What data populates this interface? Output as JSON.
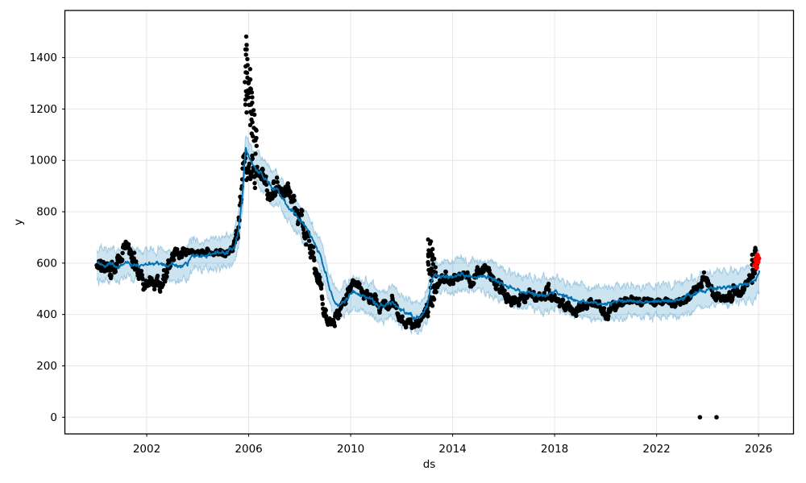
{
  "chart_data": {
    "type": "scatter-line-forecast",
    "title": "",
    "xlabel": "ds",
    "ylabel": "y",
    "legend": "none",
    "grid": true,
    "x_ticks": [
      2002,
      2006,
      2010,
      2014,
      2018,
      2022,
      2026
    ],
    "y_ticks": [
      0,
      200,
      400,
      600,
      800,
      1000,
      1200,
      1400
    ],
    "x_range": [
      1998.79,
      2027.37
    ],
    "y_range": [
      -64.9,
      1583.7
    ],
    "colors": {
      "observed": "#000000",
      "trend_line": "#0072B2",
      "band_fill": "rgba(0,114,178,0.2)",
      "band_edge": "rgba(0,114,178,0.28)",
      "future_points": "#ff0000",
      "grid": "#e6e6e6",
      "spine": "#000000"
    },
    "trend": [
      [
        2000.04,
        600
      ],
      [
        2000.3,
        592
      ],
      [
        2000.6,
        596
      ],
      [
        2000.9,
        588
      ],
      [
        2001.2,
        604
      ],
      [
        2001.5,
        592
      ],
      [
        2001.8,
        588
      ],
      [
        2002.1,
        596
      ],
      [
        2002.4,
        600
      ],
      [
        2002.7,
        590
      ],
      [
        2003.0,
        594
      ],
      [
        2003.3,
        590
      ],
      [
        2003.6,
        598
      ],
      [
        2003.78,
        632
      ],
      [
        2004.0,
        628
      ],
      [
        2004.3,
        632
      ],
      [
        2004.6,
        636
      ],
      [
        2004.9,
        640
      ],
      [
        2005.2,
        644
      ],
      [
        2005.45,
        662
      ],
      [
        2005.6,
        732
      ],
      [
        2005.75,
        862
      ],
      [
        2005.88,
        1040
      ],
      [
        2006.0,
        1012
      ],
      [
        2006.15,
        986
      ],
      [
        2006.4,
        956
      ],
      [
        2006.7,
        926
      ],
      [
        2006.95,
        882
      ],
      [
        2007.1,
        892
      ],
      [
        2007.3,
        856
      ],
      [
        2007.6,
        812
      ],
      [
        2007.9,
        782
      ],
      [
        2008.2,
        742
      ],
      [
        2008.5,
        692
      ],
      [
        2008.8,
        636
      ],
      [
        2009.0,
        566
      ],
      [
        2009.2,
        492
      ],
      [
        2009.35,
        452
      ],
      [
        2009.5,
        432
      ],
      [
        2009.7,
        450
      ],
      [
        2009.9,
        466
      ],
      [
        2010.1,
        486
      ],
      [
        2010.35,
        477
      ],
      [
        2010.6,
        468
      ],
      [
        2010.85,
        456
      ],
      [
        2011.1,
        432
      ],
      [
        2011.35,
        437
      ],
      [
        2011.6,
        448
      ],
      [
        2011.85,
        430
      ],
      [
        2012.1,
        408
      ],
      [
        2012.35,
        396
      ],
      [
        2012.6,
        386
      ],
      [
        2012.8,
        397
      ],
      [
        2013.0,
        432
      ],
      [
        2013.15,
        522
      ],
      [
        2013.3,
        557
      ],
      [
        2013.5,
        543
      ],
      [
        2013.7,
        553
      ],
      [
        2013.9,
        545
      ],
      [
        2014.1,
        549
      ],
      [
        2014.35,
        557
      ],
      [
        2014.6,
        549
      ],
      [
        2014.85,
        543
      ],
      [
        2015.1,
        553
      ],
      [
        2015.35,
        547
      ],
      [
        2015.6,
        537
      ],
      [
        2015.85,
        523
      ],
      [
        2016.1,
        513
      ],
      [
        2016.35,
        503
      ],
      [
        2016.6,
        493
      ],
      [
        2016.85,
        487
      ],
      [
        2017.1,
        483
      ],
      [
        2017.35,
        478
      ],
      [
        2017.6,
        474
      ],
      [
        2017.85,
        479
      ],
      [
        2018.05,
        491
      ],
      [
        2018.3,
        473
      ],
      [
        2018.6,
        461
      ],
      [
        2018.9,
        454
      ],
      [
        2019.2,
        449
      ],
      [
        2019.5,
        445
      ],
      [
        2019.8,
        441
      ],
      [
        2020.1,
        445
      ],
      [
        2020.4,
        451
      ],
      [
        2020.7,
        447
      ],
      [
        2021.0,
        451
      ],
      [
        2021.3,
        447
      ],
      [
        2021.6,
        451
      ],
      [
        2021.9,
        449
      ],
      [
        2022.2,
        453
      ],
      [
        2022.5,
        450
      ],
      [
        2022.8,
        457
      ],
      [
        2023.1,
        465
      ],
      [
        2023.4,
        475
      ],
      [
        2023.7,
        487
      ],
      [
        2024.0,
        495
      ],
      [
        2024.3,
        501
      ],
      [
        2024.6,
        506
      ],
      [
        2024.9,
        509
      ],
      [
        2025.2,
        514
      ],
      [
        2025.5,
        519
      ],
      [
        2025.75,
        526
      ],
      [
        2025.9,
        542
      ],
      [
        2026.03,
        562
      ]
    ],
    "band_half_width": [
      [
        2000.04,
        58
      ],
      [
        2003.0,
        55
      ],
      [
        2005.9,
        62
      ],
      [
        2009.0,
        58
      ],
      [
        2012.0,
        57
      ],
      [
        2014.0,
        60
      ],
      [
        2017.0,
        62
      ],
      [
        2020.0,
        62
      ],
      [
        2023.0,
        62
      ],
      [
        2026.03,
        68
      ]
    ],
    "observed_anchors": [
      [
        2000.04,
        588,
        40
      ],
      [
        2000.4,
        575,
        38
      ],
      [
        2000.7,
        592,
        40
      ],
      [
        2001.0,
        608,
        42
      ],
      [
        2001.25,
        672,
        26
      ],
      [
        2001.45,
        618,
        40
      ],
      [
        2001.7,
        545,
        34
      ],
      [
        2001.95,
        522,
        28
      ],
      [
        2002.25,
        518,
        26
      ],
      [
        2002.55,
        532,
        30
      ],
      [
        2002.85,
        560,
        40
      ],
      [
        2003.05,
        652,
        24
      ],
      [
        2003.3,
        640,
        18
      ],
      [
        2003.6,
        646,
        14
      ],
      [
        2003.9,
        640,
        13
      ],
      [
        2004.2,
        642,
        12
      ],
      [
        2004.5,
        640,
        12
      ],
      [
        2004.8,
        636,
        13
      ],
      [
        2005.1,
        640,
        13
      ],
      [
        2005.35,
        650,
        18
      ],
      [
        2005.55,
        715,
        45
      ],
      [
        2005.7,
        830,
        60
      ],
      [
        2005.82,
        990,
        70
      ],
      [
        2006.35,
        965,
        45
      ],
      [
        2006.6,
        915,
        45
      ],
      [
        2006.85,
        865,
        40
      ],
      [
        2007.1,
        885,
        40
      ],
      [
        2007.35,
        872,
        45
      ],
      [
        2007.55,
        905,
        35
      ],
      [
        2007.75,
        835,
        40
      ],
      [
        2008.0,
        762,
        40
      ],
      [
        2008.3,
        692,
        40
      ],
      [
        2008.6,
        592,
        45
      ],
      [
        2008.85,
        482,
        45
      ],
      [
        2009.1,
        375,
        28
      ],
      [
        2009.3,
        365,
        24
      ],
      [
        2009.5,
        405,
        30
      ],
      [
        2009.75,
        478,
        28
      ],
      [
        2010.0,
        508,
        22
      ],
      [
        2010.3,
        518,
        20
      ],
      [
        2010.6,
        482,
        24
      ],
      [
        2010.9,
        458,
        22
      ],
      [
        2011.15,
        428,
        22
      ],
      [
        2011.4,
        438,
        24
      ],
      [
        2011.65,
        452,
        22
      ],
      [
        2011.9,
        395,
        22
      ],
      [
        2012.15,
        370,
        18
      ],
      [
        2012.45,
        362,
        16
      ],
      [
        2012.7,
        372,
        18
      ],
      [
        2012.9,
        398,
        26
      ],
      [
        2013.05,
        440,
        40
      ],
      [
        2013.45,
        515,
        25
      ],
      [
        2013.65,
        538,
        22
      ],
      [
        2013.9,
        522,
        22
      ],
      [
        2014.15,
        540,
        22
      ],
      [
        2014.4,
        552,
        20
      ],
      [
        2014.65,
        532,
        22
      ],
      [
        2014.9,
        548,
        24
      ],
      [
        2015.15,
        572,
        22
      ],
      [
        2015.3,
        585,
        20
      ],
      [
        2015.5,
        548,
        24
      ],
      [
        2015.75,
        512,
        24
      ],
      [
        2016.0,
        488,
        22
      ],
      [
        2016.25,
        462,
        22
      ],
      [
        2016.5,
        448,
        20
      ],
      [
        2016.75,
        462,
        22
      ],
      [
        2017.0,
        478,
        22
      ],
      [
        2017.25,
        470,
        22
      ],
      [
        2017.5,
        462,
        22
      ],
      [
        2017.75,
        492,
        28
      ],
      [
        2018.0,
        462,
        24
      ],
      [
        2018.25,
        442,
        20
      ],
      [
        2018.5,
        432,
        18
      ],
      [
        2018.75,
        425,
        20
      ],
      [
        2019.0,
        428,
        22
      ],
      [
        2019.25,
        438,
        20
      ],
      [
        2019.5,
        442,
        20
      ],
      [
        2019.75,
        432,
        22
      ],
      [
        2020.05,
        385,
        30
      ],
      [
        2020.3,
        432,
        20
      ],
      [
        2020.55,
        442,
        18
      ],
      [
        2020.8,
        450,
        18
      ],
      [
        2021.1,
        458,
        18
      ],
      [
        2021.35,
        450,
        16
      ],
      [
        2021.6,
        443,
        16
      ],
      [
        2021.85,
        440,
        16
      ],
      [
        2022.1,
        448,
        16
      ],
      [
        2022.35,
        450,
        16
      ],
      [
        2022.6,
        442,
        16
      ],
      [
        2022.85,
        452,
        18
      ],
      [
        2023.1,
        462,
        20
      ],
      [
        2023.35,
        472,
        20
      ],
      [
        2023.6,
        488,
        22
      ],
      [
        2023.85,
        535,
        24
      ],
      [
        2024.1,
        522,
        22
      ],
      [
        2024.35,
        455,
        24
      ],
      [
        2024.6,
        448,
        20
      ],
      [
        2024.85,
        472,
        20
      ],
      [
        2025.1,
        482,
        20
      ],
      [
        2025.35,
        500,
        20
      ],
      [
        2025.55,
        525,
        24
      ],
      [
        2025.72,
        558,
        32
      ]
    ],
    "spike_columns": [
      [
        2005.88,
        1160,
        1495,
        10
      ],
      [
        2005.95,
        1230,
        1460,
        9
      ],
      [
        2006.03,
        1180,
        1360,
        8
      ],
      [
        2006.1,
        1100,
        1300,
        8
      ],
      [
        2006.18,
        1060,
        1230,
        7
      ],
      [
        2006.27,
        1020,
        1140,
        6
      ],
      [
        2013.08,
        545,
        702,
        9
      ],
      [
        2013.16,
        500,
        688,
        8
      ],
      [
        2013.24,
        545,
        665,
        6
      ],
      [
        2013.32,
        480,
        600,
        5
      ],
      [
        2025.78,
        520,
        640,
        7
      ],
      [
        2025.85,
        555,
        668,
        8
      ],
      [
        2025.9,
        585,
        662,
        5
      ]
    ],
    "outliers": [
      [
        2023.7,
        0
      ],
      [
        2024.35,
        0
      ]
    ],
    "future_points": [
      [
        2025.86,
        592
      ],
      [
        2025.89,
        612
      ],
      [
        2025.92,
        584
      ],
      [
        2025.95,
        630
      ],
      [
        2025.97,
        605
      ],
      [
        2026.0,
        618
      ]
    ],
    "scatter_sampling": {
      "start": 2000.04,
      "end": 2025.76,
      "per_year": 72,
      "ar": 0.7,
      "seed": 42
    },
    "marker_radius_px": {
      "observed": 2.7,
      "future": 3.3
    }
  }
}
